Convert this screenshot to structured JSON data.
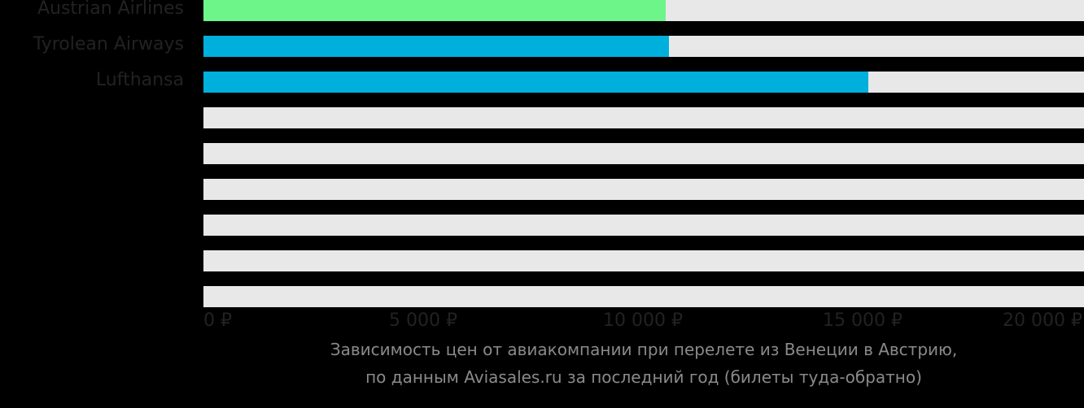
{
  "chart_data": {
    "type": "bar",
    "orientation": "horizontal",
    "title": "Зависимость цен от авиакомпании при перелете из Венеции в Австрию, по данным Aviasales.ru за последний год (билеты туда-обратно)",
    "categories": [
      "Austrian Airlines",
      "Tyrolean Airways",
      "Lufthansa",
      "",
      "",
      "",
      "",
      "",
      ""
    ],
    "values": [
      10520,
      10590,
      15130,
      null,
      null,
      null,
      null,
      null,
      null
    ],
    "bar_colors": [
      "#6ef58a",
      "#00b0dc",
      "#00b0dc"
    ],
    "track_color": "#e8e8e8",
    "xlabel": "",
    "ylabel": "",
    "xlim": [
      0,
      20000
    ],
    "x_ticks": [
      0,
      5000,
      10000,
      15000,
      20000
    ],
    "x_tick_labels": [
      "0 ₽",
      "5 000 ₽",
      "10 000 ₽",
      "15 000 ₽",
      "20 000 ₽"
    ],
    "grid": false,
    "legend": null
  },
  "caption": {
    "line1": "Зависимость цен от авиакомпании при перелете из Венеции в Австрию,",
    "line2": "по данным Aviasales.ru за последний год (билеты туда-обратно)"
  }
}
